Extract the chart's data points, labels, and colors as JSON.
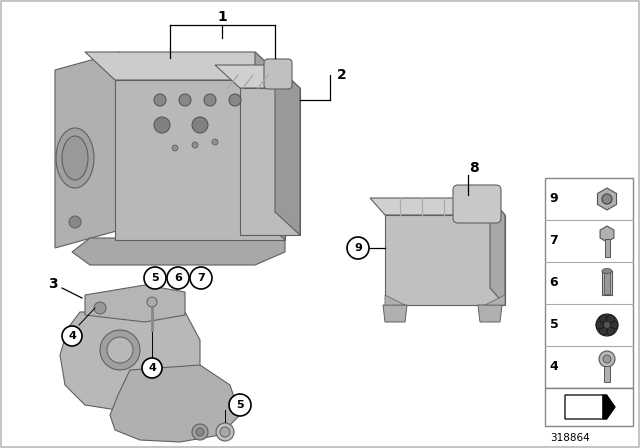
{
  "bg_color": "#ffffff",
  "part_mid": "#b0b0b0",
  "part_light": "#d0d0d0",
  "part_dark": "#888888",
  "part_darker": "#707070",
  "edge_color": "#606060",
  "diagram_id": "318864"
}
